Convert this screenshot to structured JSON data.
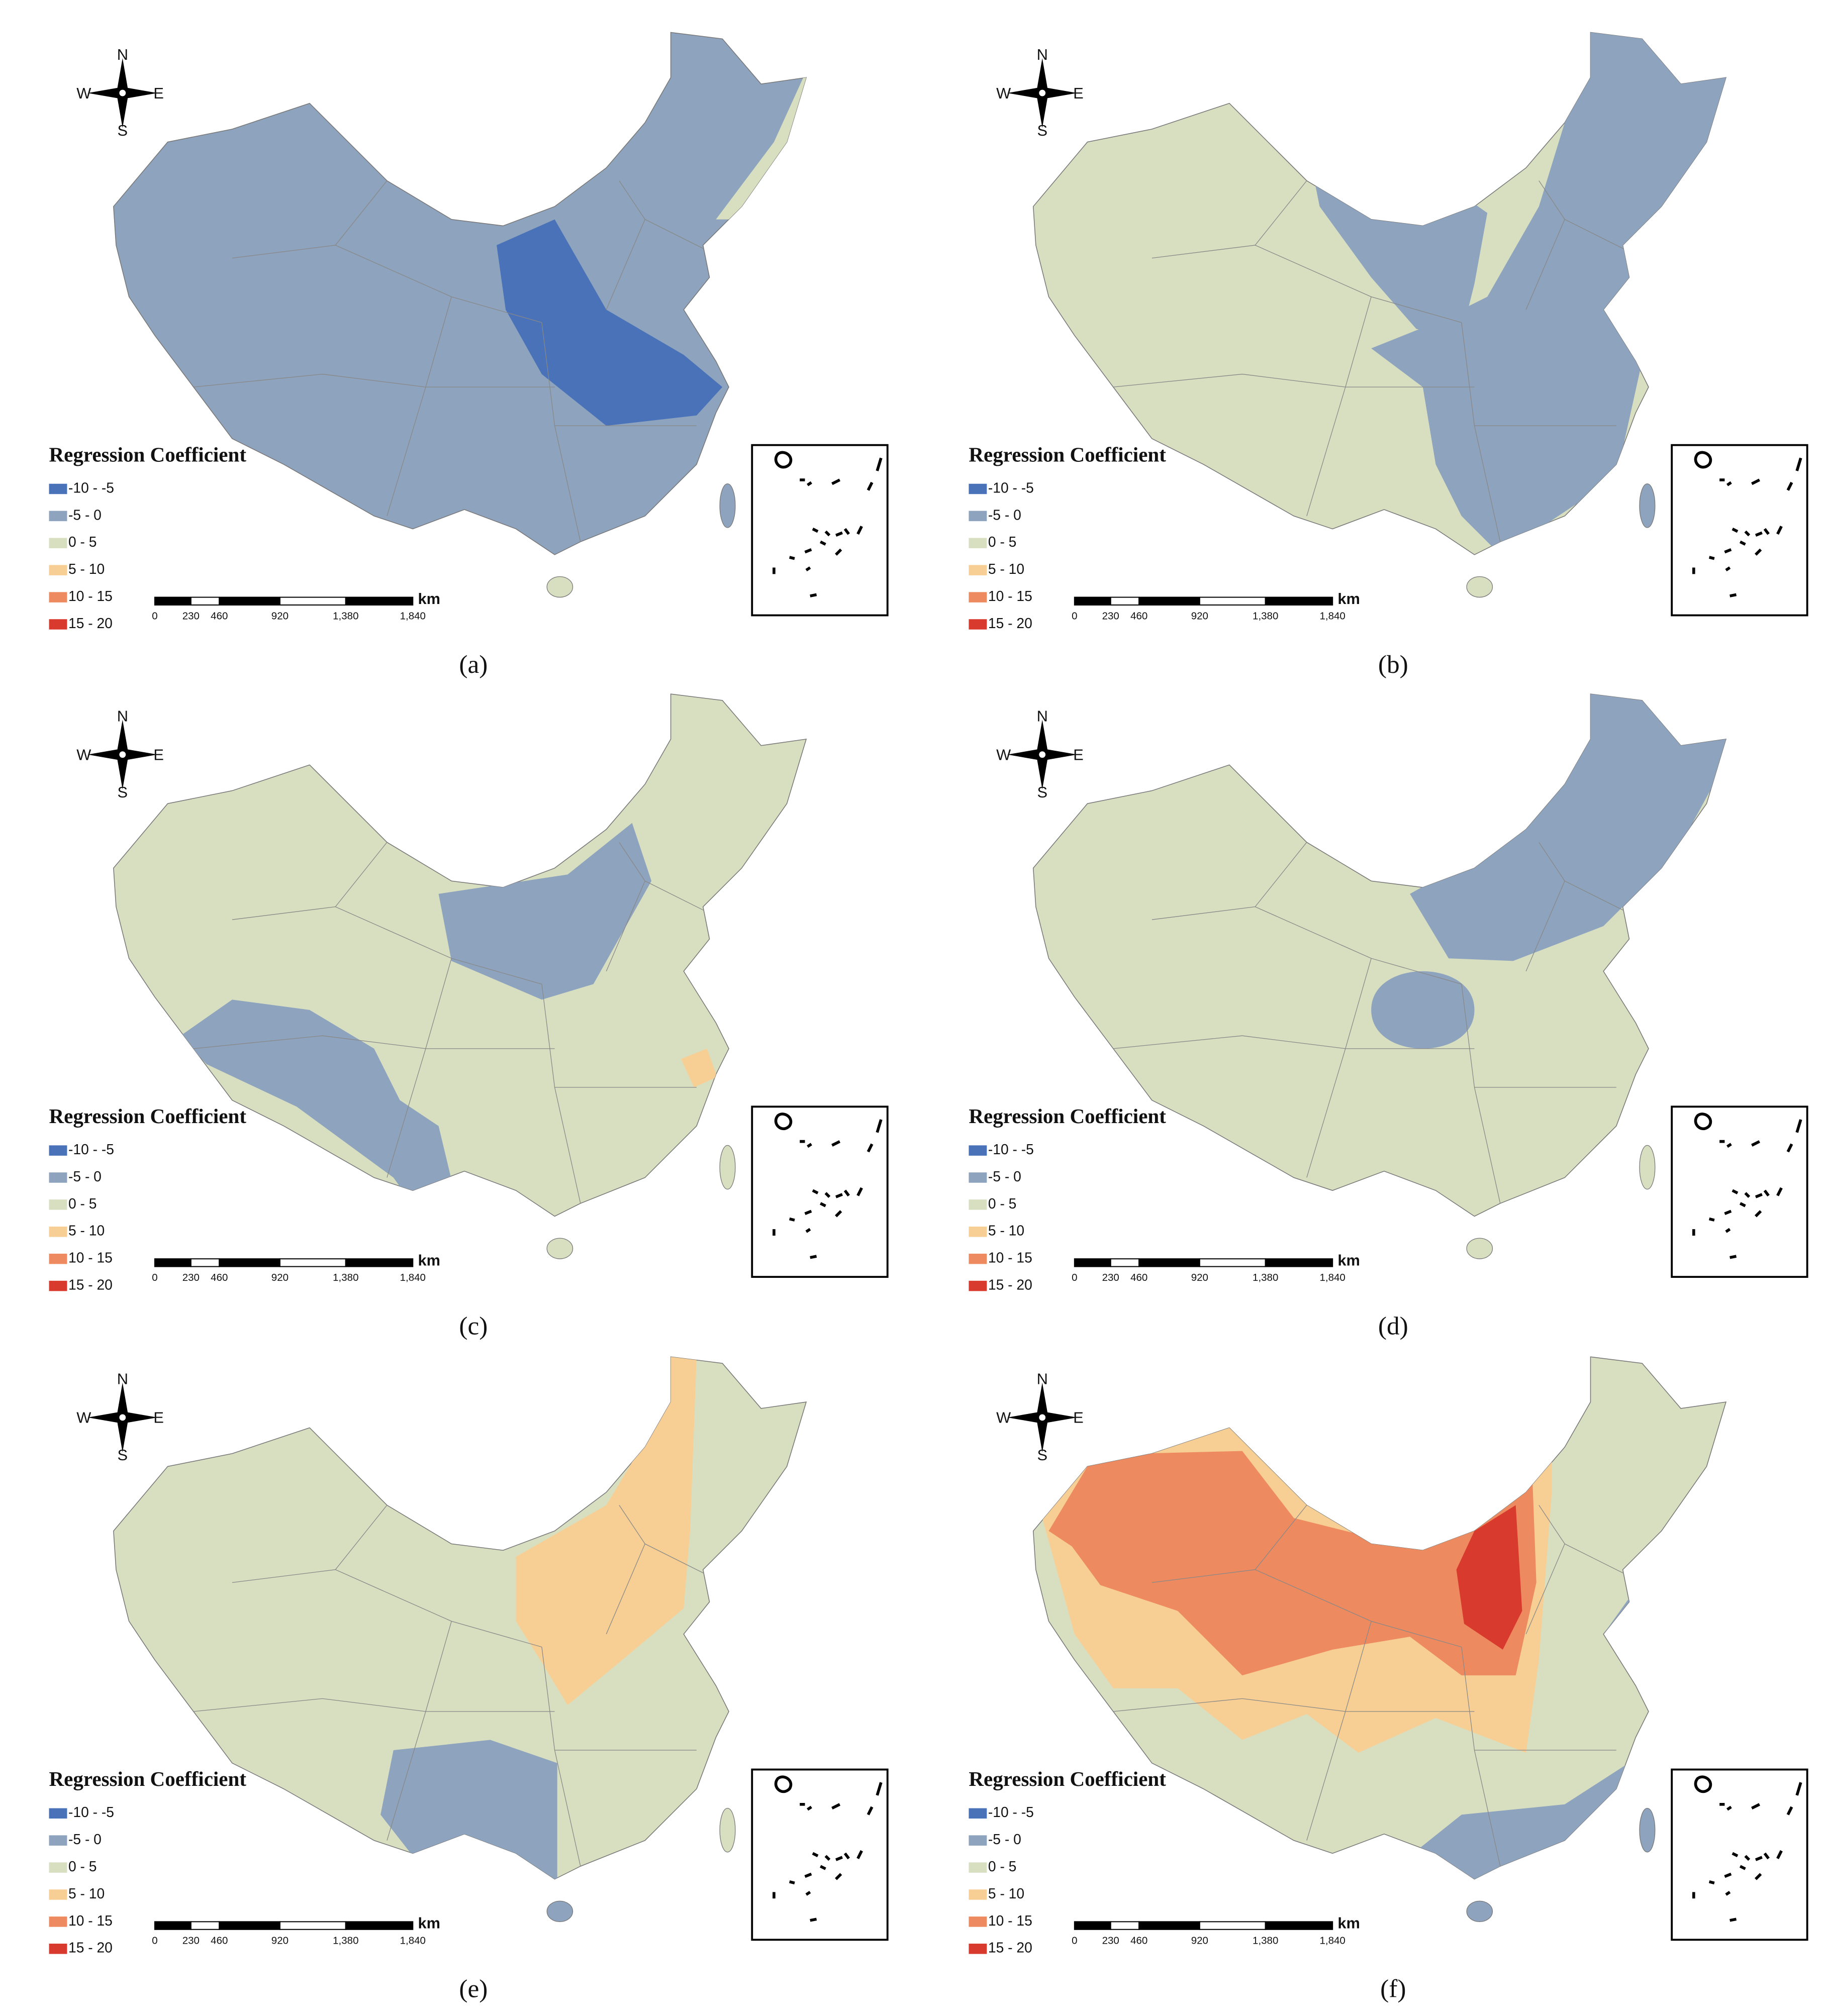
{
  "compass": {
    "north": "N",
    "south": "S",
    "west": "W",
    "east": "E"
  },
  "legend": {
    "title": "Regression Coefficient",
    "items": [
      {
        "label": "-10 - -5",
        "color": "#4a72b8"
      },
      {
        "label": "-5 - 0",
        "color": "#8ea3bd"
      },
      {
        "label": "0 - 5",
        "color": "#d8dfc0"
      },
      {
        "label": "5 - 10",
        "color": "#f7cf94"
      },
      {
        "label": "10 - 15",
        "color": "#ee8a5f"
      },
      {
        "label": "15 - 20",
        "color": "#d93a2e"
      }
    ]
  },
  "scale_bar": {
    "ticks": [
      "0",
      "230",
      "460",
      "920",
      "1,380",
      "1,840"
    ],
    "unit": "km"
  },
  "panels": [
    {
      "caption": "(a)"
    },
    {
      "caption": "(b)"
    },
    {
      "caption": "(c)"
    },
    {
      "caption": "(d)"
    },
    {
      "caption": "(e)"
    },
    {
      "caption": "(f)"
    }
  ]
}
